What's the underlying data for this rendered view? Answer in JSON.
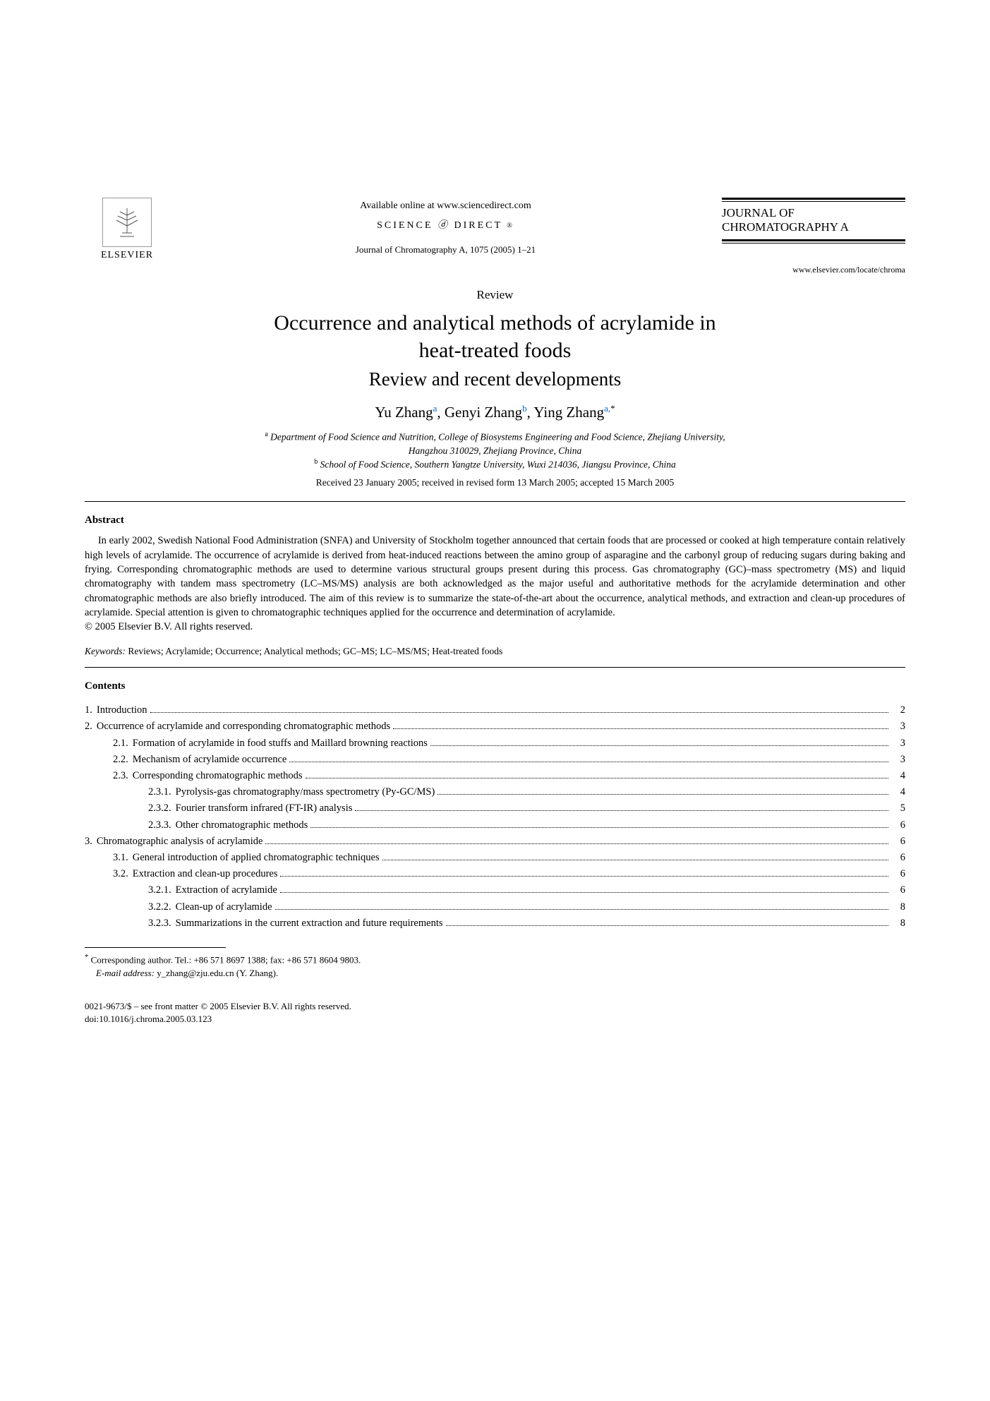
{
  "header": {
    "publisher_name": "ELSEVIER",
    "available_online": "Available online at www.sciencedirect.com",
    "science_direct": "SCIENCE",
    "science_direct2": "DIRECT",
    "journal_citation": "Journal of Chromatography A, 1075 (2005) 1–21",
    "journal_title_line1": "JOURNAL OF",
    "journal_title_line2": "CHROMATOGRAPHY A",
    "journal_url": "www.elsevier.com/locate/chroma"
  },
  "article": {
    "type": "Review",
    "title_line1": "Occurrence and analytical methods of acrylamide in",
    "title_line2": "heat-treated foods",
    "subtitle": "Review and recent developments",
    "author1": "Yu Zhang",
    "author1_aff": "a",
    "author2": "Genyi Zhang",
    "author2_aff": "b",
    "author3": "Ying Zhang",
    "author3_aff": "a,",
    "corr_symbol": "*",
    "aff_a_sup": "a",
    "aff_a": " Department of Food Science and Nutrition, College of Biosystems Engineering and Food Science, Zhejiang University,",
    "aff_a_line2": "Hangzhou 310029, Zhejiang Province, China",
    "aff_b_sup": "b",
    "aff_b": " School of Food Science, Southern Yangtze University, Wuxi 214036, Jiangsu Province, China",
    "dates": "Received 23 January 2005; received in revised form 13 March 2005; accepted 15 March 2005"
  },
  "abstract": {
    "heading": "Abstract",
    "text": "In early 2002, Swedish National Food Administration (SNFA) and University of Stockholm together announced that certain foods that are processed or cooked at high temperature contain relatively high levels of acrylamide. The occurrence of acrylamide is derived from heat-induced reactions between the amino group of asparagine and the carbonyl group of reducing sugars during baking and frying. Corresponding chromatographic methods are used to determine various structural groups present during this process. Gas chromatography (GC)–mass spectrometry (MS) and liquid chromatography with tandem mass spectrometry (LC–MS/MS) analysis are both acknowledged as the major useful and authoritative methods for the acrylamide determination and other chromatographic methods are also briefly introduced. The aim of this review is to summarize the state-of-the-art about the occurrence, analytical methods, and extraction and clean-up procedures of acrylamide. Special attention is given to chromatographic techniques applied for the occurrence and determination of acrylamide.",
    "copyright": "© 2005 Elsevier B.V. All rights reserved."
  },
  "keywords": {
    "label": "Keywords:",
    "text": "  Reviews; Acrylamide; Occurrence; Analytical methods; GC–MS; LC–MS/MS; Heat-treated foods"
  },
  "contents": {
    "heading": "Contents",
    "items": [
      {
        "indent": 0,
        "num": "1.",
        "label": "Introduction",
        "page": "2"
      },
      {
        "indent": 0,
        "num": "2.",
        "label": "Occurrence of acrylamide and corresponding chromatographic methods",
        "page": "3"
      },
      {
        "indent": 1,
        "num": "2.1.",
        "label": "Formation of acrylamide in food stuffs and Maillard browning reactions",
        "page": "3"
      },
      {
        "indent": 1,
        "num": "2.2.",
        "label": "Mechanism of acrylamide occurrence",
        "page": "3"
      },
      {
        "indent": 1,
        "num": "2.3.",
        "label": "Corresponding chromatographic methods",
        "page": "4"
      },
      {
        "indent": 2,
        "num": "2.3.1.",
        "label": "Pyrolysis-gas chromatography/mass spectrometry (Py-GC/MS)",
        "page": "4"
      },
      {
        "indent": 2,
        "num": "2.3.2.",
        "label": "Fourier transform infrared (FT-IR) analysis",
        "page": "5"
      },
      {
        "indent": 2,
        "num": "2.3.3.",
        "label": "Other chromatographic methods",
        "page": "6"
      },
      {
        "indent": 0,
        "num": "3.",
        "label": "Chromatographic analysis of acrylamide",
        "page": "6"
      },
      {
        "indent": 1,
        "num": "3.1.",
        "label": "General introduction of applied chromatographic techniques",
        "page": "6"
      },
      {
        "indent": 1,
        "num": "3.2.",
        "label": "Extraction and clean-up procedures",
        "page": "6"
      },
      {
        "indent": 2,
        "num": "3.2.1.",
        "label": "Extraction of acrylamide",
        "page": "6"
      },
      {
        "indent": 2,
        "num": "3.2.2.",
        "label": "Clean-up of acrylamide",
        "page": "8"
      },
      {
        "indent": 2,
        "num": "3.2.3.",
        "label": "Summarizations in the current extraction and future requirements",
        "page": "8"
      }
    ]
  },
  "footnotes": {
    "corr_symbol": "*",
    "corr_text": " Corresponding author. Tel.: +86 571 8697 1388; fax: +86 571 8604 9803.",
    "email_label": "E-mail address:",
    "email": " y_zhang@zju.edu.cn (Y. Zhang)."
  },
  "bottom": {
    "issn": "0021-9673/$ – see front matter © 2005 Elsevier B.V. All rights reserved.",
    "doi": "doi:10.1016/j.chroma.2005.03.123"
  },
  "colors": {
    "text": "#000000",
    "link": "#0066cc",
    "background": "#ffffff"
  },
  "typography": {
    "body_font": "Georgia, Times New Roman, serif",
    "title_fontsize": 30,
    "subtitle_fontsize": 27,
    "author_fontsize": 21,
    "body_fontsize": 14.5,
    "small_fontsize": 13
  }
}
